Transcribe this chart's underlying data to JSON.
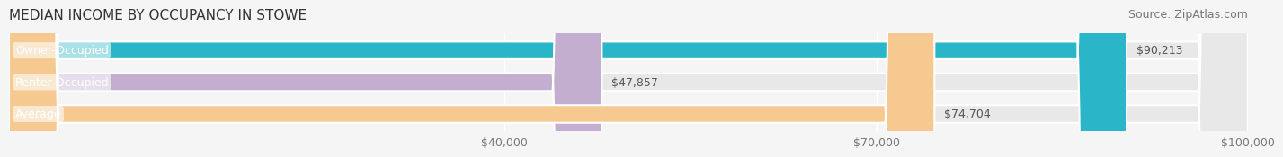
{
  "title": "MEDIAN INCOME BY OCCUPANCY IN STOWE",
  "source": "Source: ZipAtlas.com",
  "categories": [
    "Owner-Occupied",
    "Renter-Occupied",
    "Average"
  ],
  "values": [
    90213,
    47857,
    74704
  ],
  "value_labels": [
    "$90,213",
    "$47,857",
    "$74,704"
  ],
  "bar_colors": [
    "#2bb5c8",
    "#c4aed0",
    "#f5c990"
  ],
  "bar_edge_colors": [
    "#2bb5c8",
    "#c4aed0",
    "#f5c990"
  ],
  "xlim": [
    0,
    100000
  ],
  "xticks": [
    40000,
    70000,
    100000
  ],
  "xtick_labels": [
    "$40,000",
    "$70,000",
    "$100,000"
  ],
  "background_color": "#f5f5f5",
  "bar_bg_color": "#e8e8e8",
  "title_fontsize": 11,
  "source_fontsize": 9,
  "label_fontsize": 9,
  "value_fontsize": 9,
  "tick_fontsize": 9
}
